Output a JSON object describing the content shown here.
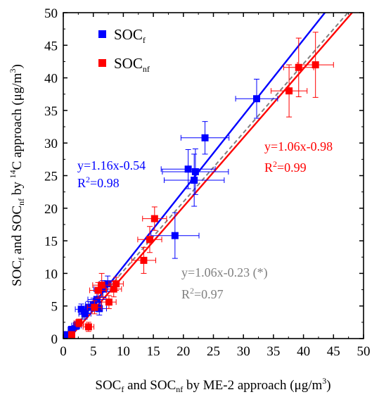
{
  "chart_data": {
    "type": "scatter",
    "title": "",
    "xlabel": {
      "base": "SOC",
      "sub1": "f",
      "mid": " and SOC",
      "sub2": "nf",
      "end": " by ME-2 approach (μg/m",
      "sup": "3",
      "close": ")"
    },
    "ylabel": {
      "base": "SOC",
      "sub1": "f",
      "mid": " and SOC",
      "sub2": "nf",
      "pre": " by ",
      "sup14": "14",
      "end": "C approach (μg/m",
      "sup": "3",
      "close": ")"
    },
    "xlim": [
      0,
      50
    ],
    "ylim": [
      0,
      50
    ],
    "xticks": [
      "0",
      "5",
      "10",
      "15",
      "20",
      "25",
      "30",
      "35",
      "40",
      "45",
      "50"
    ],
    "yticks": [
      "0",
      "5",
      "10",
      "15",
      "20",
      "25",
      "30",
      "35",
      "40",
      "45",
      "50"
    ],
    "legend": {
      "placement": "top-left",
      "entries": [
        {
          "base": "SOC",
          "sub": "f",
          "color": "#0000ff"
        },
        {
          "base": "SOC",
          "sub": "nf",
          "color": "#ff0000"
        }
      ]
    },
    "series": [
      {
        "color": "#0000ff",
        "points": [
          {
            "x": 0.6,
            "y": 0.6,
            "xerr": 0.3,
            "yerr": 0.3
          },
          {
            "x": 1.4,
            "y": 1.4,
            "xerr": 0.6,
            "yerr": 0.5
          },
          {
            "x": 2.2,
            "y": 2.0,
            "xerr": 0.8,
            "yerr": 0.6
          },
          {
            "x": 3.0,
            "y": 4.5,
            "xerr": 1.0,
            "yerr": 0.8
          },
          {
            "x": 3.6,
            "y": 3.8,
            "xerr": 1.0,
            "yerr": 0.8
          },
          {
            "x": 4.2,
            "y": 4.8,
            "xerr": 1.2,
            "yerr": 0.9
          },
          {
            "x": 5.0,
            "y": 5.2,
            "xerr": 1.3,
            "yerr": 1.0
          },
          {
            "x": 5.6,
            "y": 6.0,
            "xerr": 1.5,
            "yerr": 1.2
          },
          {
            "x": 6.0,
            "y": 4.6,
            "xerr": 1.2,
            "yerr": 1.0
          },
          {
            "x": 6.6,
            "y": 7.6,
            "xerr": 1.5,
            "yerr": 1.3
          },
          {
            "x": 7.4,
            "y": 8.4,
            "xerr": 1.4,
            "yerr": 1.2
          },
          {
            "x": 18.6,
            "y": 15.8,
            "xerr": 4.0,
            "yerr": 3.5
          },
          {
            "x": 20.8,
            "y": 26.0,
            "xerr": 4.5,
            "yerr": 3.0
          },
          {
            "x": 21.8,
            "y": 24.3,
            "xerr": 5.0,
            "yerr": 4.0
          },
          {
            "x": 22.0,
            "y": 25.6,
            "xerr": 5.5,
            "yerr": 3.5
          },
          {
            "x": 23.6,
            "y": 30.8,
            "xerr": 4.0,
            "yerr": 2.5
          },
          {
            "x": 32.2,
            "y": 36.8,
            "xerr": 3.5,
            "yerr": 3.0
          }
        ]
      },
      {
        "color": "#ff0000",
        "points": [
          {
            "x": 1.4,
            "y": 0.6,
            "xerr": 0.5,
            "yerr": 0.4
          },
          {
            "x": 2.6,
            "y": 2.4,
            "xerr": 0.8,
            "yerr": 0.6
          },
          {
            "x": 4.2,
            "y": 1.8,
            "xerr": 0.9,
            "yerr": 0.7
          },
          {
            "x": 5.2,
            "y": 4.8,
            "xerr": 1.2,
            "yerr": 1.0
          },
          {
            "x": 5.8,
            "y": 7.4,
            "xerr": 1.4,
            "yerr": 1.2
          },
          {
            "x": 6.4,
            "y": 8.2,
            "xerr": 1.5,
            "yerr": 1.8
          },
          {
            "x": 7.6,
            "y": 5.6,
            "xerr": 1.2,
            "yerr": 1.0
          },
          {
            "x": 8.4,
            "y": 7.6,
            "xerr": 1.3,
            "yerr": 1.2
          },
          {
            "x": 8.8,
            "y": 8.4,
            "xerr": 1.2,
            "yerr": 1.0
          },
          {
            "x": 13.4,
            "y": 12.0,
            "xerr": 2.0,
            "yerr": 2.0
          },
          {
            "x": 14.4,
            "y": 15.2,
            "xerr": 2.0,
            "yerr": 2.0
          },
          {
            "x": 15.2,
            "y": 18.4,
            "xerr": 2.0,
            "yerr": 1.8
          },
          {
            "x": 37.6,
            "y": 38.0,
            "xerr": 3.0,
            "yerr": 4.0
          },
          {
            "x": 39.2,
            "y": 41.6,
            "xerr": 2.5,
            "yerr": 4.5
          },
          {
            "x": 42.0,
            "y": 42.0,
            "xerr": 3.0,
            "yerr": 5.0
          }
        ]
      }
    ],
    "fits": [
      {
        "slope": 1.16,
        "intercept": -0.54,
        "color": "#0000ff",
        "style": "solid",
        "label": "y=1.16x-0.54",
        "r2_base": "R",
        "r2_sup": "2",
        "r2_value": "=0.98"
      },
      {
        "slope": 1.06,
        "intercept": -0.98,
        "color": "#ff0000",
        "style": "solid",
        "label": "y=1.06x-0.98",
        "r2_base": "R",
        "r2_sup": "2",
        "r2_value": "=0.99"
      },
      {
        "slope": 1.06,
        "intercept": -0.23,
        "color": "#808080",
        "style": "dashed",
        "label": "y=1.06x-0.23 (*)",
        "r2_base": "R",
        "r2_sup": "2",
        "r2_value": "=0.97"
      }
    ]
  }
}
